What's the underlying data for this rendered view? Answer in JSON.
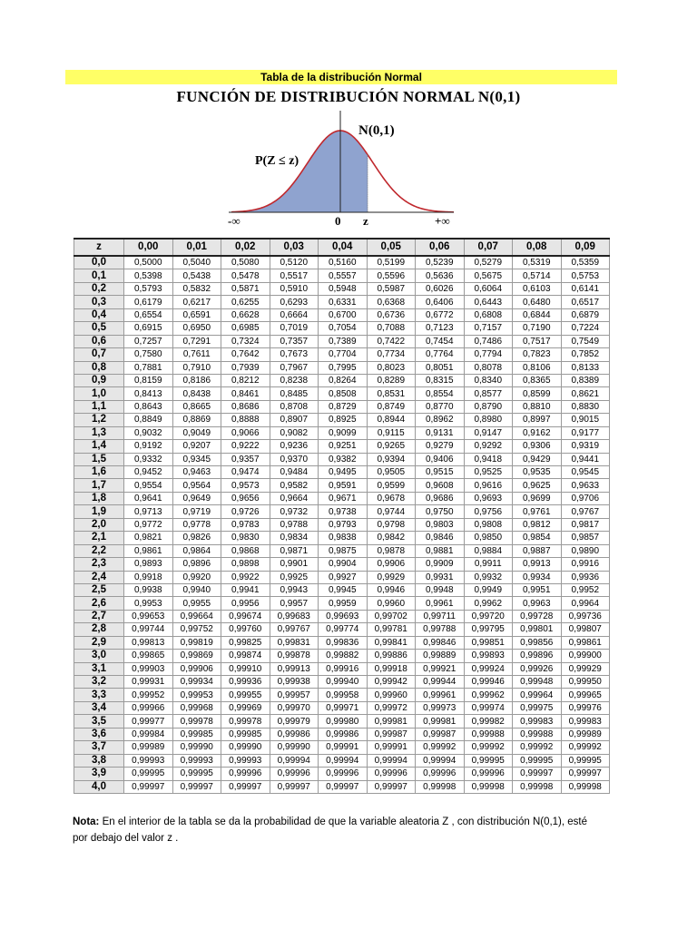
{
  "header": {
    "banner": "Tabla de la distribución Normal",
    "title": "FUNCIÓN DE DISTRIBUCIÓN NORMAL N(0,1)"
  },
  "figure": {
    "curve_label": "N(0,1)",
    "area_label": "P(Z ≤ z)",
    "axis_left": "-∞",
    "axis_zero": "0",
    "axis_z": "z",
    "axis_right": "+∞",
    "colors": {
      "curve": "#c0282d",
      "fill": "#8fa3cf"
    }
  },
  "table": {
    "corner": "z",
    "columns": [
      "0,00",
      "0,01",
      "0,02",
      "0,03",
      "0,04",
      "0,05",
      "0,06",
      "0,07",
      "0,08",
      "0,09"
    ],
    "rows": [
      {
        "z": "0,0",
        "v": [
          "0,5000",
          "0,5040",
          "0,5080",
          "0,5120",
          "0,5160",
          "0,5199",
          "0,5239",
          "0,5279",
          "0,5319",
          "0,5359"
        ]
      },
      {
        "z": "0,1",
        "v": [
          "0,5398",
          "0,5438",
          "0,5478",
          "0,5517",
          "0,5557",
          "0,5596",
          "0,5636",
          "0,5675",
          "0,5714",
          "0,5753"
        ]
      },
      {
        "z": "0,2",
        "v": [
          "0,5793",
          "0,5832",
          "0,5871",
          "0,5910",
          "0,5948",
          "0,5987",
          "0,6026",
          "0,6064",
          "0,6103",
          "0,6141"
        ]
      },
      {
        "z": "0,3",
        "v": [
          "0,6179",
          "0,6217",
          "0,6255",
          "0,6293",
          "0,6331",
          "0,6368",
          "0,6406",
          "0,6443",
          "0,6480",
          "0,6517"
        ]
      },
      {
        "z": "0,4",
        "v": [
          "0,6554",
          "0,6591",
          "0,6628",
          "0,6664",
          "0,6700",
          "0,6736",
          "0,6772",
          "0,6808",
          "0,6844",
          "0,6879"
        ]
      },
      {
        "z": "0,5",
        "v": [
          "0,6915",
          "0,6950",
          "0,6985",
          "0,7019",
          "0,7054",
          "0,7088",
          "0,7123",
          "0,7157",
          "0,7190",
          "0,7224"
        ]
      },
      {
        "z": "0,6",
        "v": [
          "0,7257",
          "0,7291",
          "0,7324",
          "0,7357",
          "0,7389",
          "0,7422",
          "0,7454",
          "0,7486",
          "0,7517",
          "0,7549"
        ]
      },
      {
        "z": "0,7",
        "v": [
          "0,7580",
          "0,7611",
          "0,7642",
          "0,7673",
          "0,7704",
          "0,7734",
          "0,7764",
          "0,7794",
          "0,7823",
          "0,7852"
        ]
      },
      {
        "z": "0,8",
        "v": [
          "0,7881",
          "0,7910",
          "0,7939",
          "0,7967",
          "0,7995",
          "0,8023",
          "0,8051",
          "0,8078",
          "0,8106",
          "0,8133"
        ]
      },
      {
        "z": "0,9",
        "v": [
          "0,8159",
          "0,8186",
          "0,8212",
          "0,8238",
          "0,8264",
          "0,8289",
          "0,8315",
          "0,8340",
          "0,8365",
          "0,8389"
        ]
      },
      {
        "z": "1,0",
        "v": [
          "0,8413",
          "0,8438",
          "0,8461",
          "0,8485",
          "0,8508",
          "0,8531",
          "0,8554",
          "0,8577",
          "0,8599",
          "0,8621"
        ]
      },
      {
        "z": "1,1",
        "v": [
          "0,8643",
          "0,8665",
          "0,8686",
          "0,8708",
          "0,8729",
          "0,8749",
          "0,8770",
          "0,8790",
          "0,8810",
          "0,8830"
        ]
      },
      {
        "z": "1,2",
        "v": [
          "0,8849",
          "0,8869",
          "0,8888",
          "0,8907",
          "0,8925",
          "0,8944",
          "0,8962",
          "0,8980",
          "0,8997",
          "0,9015"
        ]
      },
      {
        "z": "1,3",
        "v": [
          "0,9032",
          "0,9049",
          "0,9066",
          "0,9082",
          "0,9099",
          "0,9115",
          "0,9131",
          "0,9147",
          "0,9162",
          "0,9177"
        ]
      },
      {
        "z": "1,4",
        "v": [
          "0,9192",
          "0,9207",
          "0,9222",
          "0,9236",
          "0,9251",
          "0,9265",
          "0,9279",
          "0,9292",
          "0,9306",
          "0,9319"
        ]
      },
      {
        "z": "1,5",
        "v": [
          "0,9332",
          "0,9345",
          "0,9357",
          "0,9370",
          "0,9382",
          "0,9394",
          "0,9406",
          "0,9418",
          "0,9429",
          "0,9441"
        ]
      },
      {
        "z": "1,6",
        "v": [
          "0,9452",
          "0,9463",
          "0,9474",
          "0,9484",
          "0,9495",
          "0,9505",
          "0,9515",
          "0,9525",
          "0,9535",
          "0,9545"
        ]
      },
      {
        "z": "1,7",
        "v": [
          "0,9554",
          "0,9564",
          "0,9573",
          "0,9582",
          "0,9591",
          "0,9599",
          "0,9608",
          "0,9616",
          "0,9625",
          "0,9633"
        ]
      },
      {
        "z": "1,8",
        "v": [
          "0,9641",
          "0,9649",
          "0,9656",
          "0,9664",
          "0,9671",
          "0,9678",
          "0,9686",
          "0,9693",
          "0,9699",
          "0,9706"
        ]
      },
      {
        "z": "1,9",
        "v": [
          "0,9713",
          "0,9719",
          "0,9726",
          "0,9732",
          "0,9738",
          "0,9744",
          "0,9750",
          "0,9756",
          "0,9761",
          "0,9767"
        ]
      },
      {
        "z": "2,0",
        "v": [
          "0,9772",
          "0,9778",
          "0,9783",
          "0,9788",
          "0,9793",
          "0,9798",
          "0,9803",
          "0,9808",
          "0,9812",
          "0,9817"
        ]
      },
      {
        "z": "2,1",
        "v": [
          "0,9821",
          "0,9826",
          "0,9830",
          "0,9834",
          "0,9838",
          "0,9842",
          "0,9846",
          "0,9850",
          "0,9854",
          "0,9857"
        ]
      },
      {
        "z": "2,2",
        "v": [
          "0,9861",
          "0,9864",
          "0,9868",
          "0,9871",
          "0,9875",
          "0,9878",
          "0,9881",
          "0,9884",
          "0,9887",
          "0,9890"
        ]
      },
      {
        "z": "2,3",
        "v": [
          "0,9893",
          "0,9896",
          "0,9898",
          "0,9901",
          "0,9904",
          "0,9906",
          "0,9909",
          "0,9911",
          "0,9913",
          "0,9916"
        ]
      },
      {
        "z": "2,4",
        "v": [
          "0,9918",
          "0,9920",
          "0,9922",
          "0,9925",
          "0,9927",
          "0,9929",
          "0,9931",
          "0,9932",
          "0,9934",
          "0,9936"
        ]
      },
      {
        "z": "2,5",
        "v": [
          "0,9938",
          "0,9940",
          "0,9941",
          "0,9943",
          "0,9945",
          "0,9946",
          "0,9948",
          "0,9949",
          "0,9951",
          "0,9952"
        ]
      },
      {
        "z": "2,6",
        "v": [
          "0,9953",
          "0,9955",
          "0,9956",
          "0,9957",
          "0,9959",
          "0,9960",
          "0,9961",
          "0,9962",
          "0,9963",
          "0,9964"
        ]
      },
      {
        "z": "2,7",
        "v": [
          "0,99653",
          "0,99664",
          "0,99674",
          "0,99683",
          "0,99693",
          "0,99702",
          "0,99711",
          "0,99720",
          "0,99728",
          "0,99736"
        ]
      },
      {
        "z": "2,8",
        "v": [
          "0,99744",
          "0,99752",
          "0,99760",
          "0,99767",
          "0,99774",
          "0,99781",
          "0,99788",
          "0,99795",
          "0,99801",
          "0,99807"
        ]
      },
      {
        "z": "2,9",
        "v": [
          "0,99813",
          "0,99819",
          "0,99825",
          "0,99831",
          "0,99836",
          "0,99841",
          "0,99846",
          "0,99851",
          "0,99856",
          "0,99861"
        ]
      },
      {
        "z": "3,0",
        "v": [
          "0,99865",
          "0,99869",
          "0,99874",
          "0,99878",
          "0,99882",
          "0,99886",
          "0,99889",
          "0,99893",
          "0,99896",
          "0,99900"
        ]
      },
      {
        "z": "3,1",
        "v": [
          "0,99903",
          "0,99906",
          "0,99910",
          "0,99913",
          "0,99916",
          "0,99918",
          "0,99921",
          "0,99924",
          "0,99926",
          "0,99929"
        ]
      },
      {
        "z": "3,2",
        "v": [
          "0,99931",
          "0,99934",
          "0,99936",
          "0,99938",
          "0,99940",
          "0,99942",
          "0,99944",
          "0,99946",
          "0,99948",
          "0,99950"
        ]
      },
      {
        "z": "3,3",
        "v": [
          "0,99952",
          "0,99953",
          "0,99955",
          "0,99957",
          "0,99958",
          "0,99960",
          "0,99961",
          "0,99962",
          "0,99964",
          "0,99965"
        ]
      },
      {
        "z": "3,4",
        "v": [
          "0,99966",
          "0,99968",
          "0,99969",
          "0,99970",
          "0,99971",
          "0,99972",
          "0,99973",
          "0,99974",
          "0,99975",
          "0,99976"
        ]
      },
      {
        "z": "3,5",
        "v": [
          "0,99977",
          "0,99978",
          "0,99978",
          "0,99979",
          "0,99980",
          "0,99981",
          "0,99981",
          "0,99982",
          "0,99983",
          "0,99983"
        ]
      },
      {
        "z": "3,6",
        "v": [
          "0,99984",
          "0,99985",
          "0,99985",
          "0,99986",
          "0,99986",
          "0,99987",
          "0,99987",
          "0,99988",
          "0,99988",
          "0,99989"
        ]
      },
      {
        "z": "3,7",
        "v": [
          "0,99989",
          "0,99990",
          "0,99990",
          "0,99990",
          "0,99991",
          "0,99991",
          "0,99992",
          "0,99992",
          "0,99992",
          "0,99992"
        ]
      },
      {
        "z": "3,8",
        "v": [
          "0,99993",
          "0,99993",
          "0,99993",
          "0,99994",
          "0,99994",
          "0,99994",
          "0,99994",
          "0,99995",
          "0,99995",
          "0,99995"
        ]
      },
      {
        "z": "3,9",
        "v": [
          "0,99995",
          "0,99995",
          "0,99996",
          "0,99996",
          "0,99996",
          "0,99996",
          "0,99996",
          "0,99996",
          "0,99997",
          "0,99997"
        ]
      },
      {
        "z": "4,0",
        "v": [
          "0,99997",
          "0,99997",
          "0,99997",
          "0,99997",
          "0,99997",
          "0,99997",
          "0,99998",
          "0,99998",
          "0,99998",
          "0,99998"
        ]
      }
    ]
  },
  "note": {
    "label": "Nota:",
    "line1": "En el interior de la tabla se da la probabilidad de que la variable aleatoria Z , con distribución N(0,1), esté",
    "line2": "por debajo del valor z ."
  }
}
